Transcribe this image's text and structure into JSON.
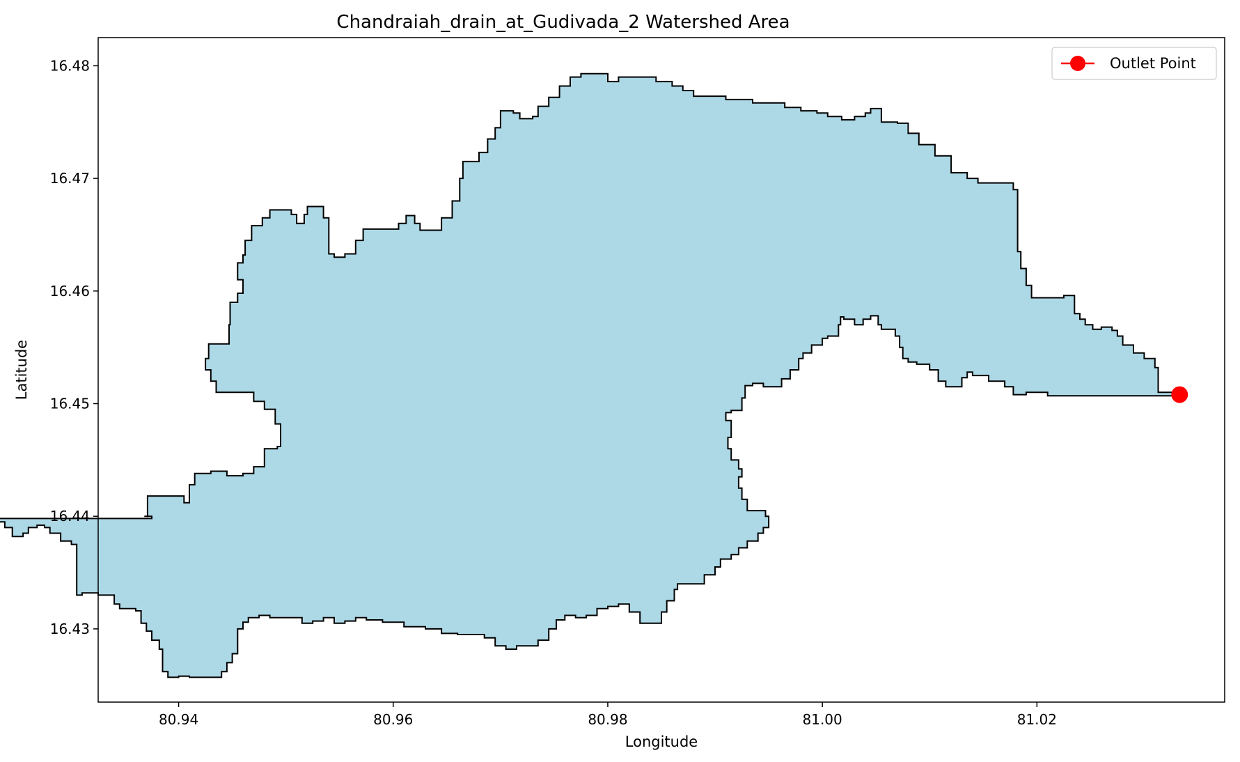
{
  "chart_data": {
    "type": "map",
    "title": "Chandraiah_drain_at_Gudivada_2 Watershed Area",
    "xlabel": "Longitude",
    "ylabel": "Latitude",
    "xlim": [
      80.9325,
      81.0375
    ],
    "ylim": [
      16.4235,
      16.4825
    ],
    "xticks": [
      80.94,
      80.96,
      80.98,
      81.0,
      81.02
    ],
    "xtick_labels": [
      "80.94",
      "80.96",
      "80.98",
      "81.00",
      "81.02"
    ],
    "yticks": [
      16.43,
      16.44,
      16.45,
      16.46,
      16.47,
      16.48
    ],
    "ytick_labels": [
      "16.43",
      "16.44",
      "16.45",
      "16.46",
      "16.47",
      "16.48"
    ],
    "grid": false,
    "watershed": {
      "fill_color": "#add8e6",
      "edge_color": "#000000",
      "boundary": [
        [
          80.9368,
          16.44
        ],
        [
          80.9371,
          16.4408
        ],
        [
          80.9371,
          16.4418
        ],
        [
          80.94,
          16.4418
        ],
        [
          80.9405,
          16.4412
        ],
        [
          80.941,
          16.4418
        ],
        [
          80.941,
          16.4428
        ],
        [
          80.9415,
          16.4438
        ],
        [
          80.943,
          16.444
        ],
        [
          80.9445,
          16.4436
        ],
        [
          80.946,
          16.4438
        ],
        [
          80.947,
          16.4444
        ],
        [
          80.948,
          16.4445
        ],
        [
          80.948,
          16.446
        ],
        [
          80.9492,
          16.4462
        ],
        [
          80.9495,
          16.447
        ],
        [
          80.9495,
          16.4482
        ],
        [
          80.949,
          16.4495
        ],
        [
          80.948,
          16.4502
        ],
        [
          80.947,
          16.451
        ],
        [
          80.944,
          16.451
        ],
        [
          80.9435,
          16.452
        ],
        [
          80.943,
          16.453
        ],
        [
          80.9425,
          16.454
        ],
        [
          80.9428,
          16.4553
        ],
        [
          80.9445,
          16.4553
        ],
        [
          80.9447,
          16.457
        ],
        [
          80.9448,
          16.459
        ],
        [
          80.9455,
          16.4598
        ],
        [
          80.946,
          16.461
        ],
        [
          80.9455,
          16.4625
        ],
        [
          80.946,
          16.4632
        ],
        [
          80.9462,
          16.4645
        ],
        [
          80.9468,
          16.4658
        ],
        [
          80.9478,
          16.4665
        ],
        [
          80.9485,
          16.4672
        ],
        [
          80.9495,
          16.4672
        ],
        [
          80.9505,
          16.4668
        ],
        [
          80.951,
          16.466
        ],
        [
          80.9517,
          16.4668
        ],
        [
          80.952,
          16.4675
        ],
        [
          80.9532,
          16.4675
        ],
        [
          80.9535,
          16.4665
        ],
        [
          80.954,
          16.4655
        ],
        [
          80.954,
          16.4633
        ],
        [
          80.9545,
          16.463
        ],
        [
          80.9555,
          16.4633
        ],
        [
          80.9565,
          16.4645
        ],
        [
          80.9572,
          16.4655
        ],
        [
          80.9595,
          16.4655
        ],
        [
          80.9605,
          16.466
        ],
        [
          80.9612,
          16.4667
        ],
        [
          80.962,
          16.466
        ],
        [
          80.9625,
          16.4654
        ],
        [
          80.9635,
          16.4654
        ],
        [
          80.9645,
          16.4665
        ],
        [
          80.9655,
          16.468
        ],
        [
          80.9662,
          16.47
        ],
        [
          80.9665,
          16.4715
        ],
        [
          80.968,
          16.4723
        ],
        [
          80.9688,
          16.4735
        ],
        [
          80.9695,
          16.4745
        ],
        [
          80.97,
          16.476
        ],
        [
          80.9712,
          16.4758
        ],
        [
          80.9718,
          16.4753
        ],
        [
          80.973,
          16.4755
        ],
        [
          80.9735,
          16.4764
        ],
        [
          80.9745,
          16.4772
        ],
        [
          80.9755,
          16.4782
        ],
        [
          80.9765,
          16.479
        ],
        [
          80.9775,
          16.4793
        ],
        [
          80.979,
          16.4793
        ],
        [
          80.98,
          16.4786
        ],
        [
          80.981,
          16.479
        ],
        [
          80.983,
          16.479
        ],
        [
          80.9845,
          16.4786
        ],
        [
          80.986,
          16.4782
        ],
        [
          80.987,
          16.4778
        ],
        [
          80.988,
          16.4773
        ],
        [
          80.9895,
          16.4773
        ],
        [
          80.991,
          16.477
        ],
        [
          80.9925,
          16.477
        ],
        [
          80.9935,
          16.4767
        ],
        [
          80.995,
          16.4767
        ],
        [
          80.9965,
          16.4763
        ],
        [
          80.998,
          16.476
        ],
        [
          80.9995,
          16.4758
        ],
        [
          81.0005,
          16.4755
        ],
        [
          81.0018,
          16.4752
        ],
        [
          81.003,
          16.4755
        ],
        [
          81.004,
          16.4758
        ],
        [
          81.0045,
          16.4762
        ],
        [
          81.0055,
          16.475
        ],
        [
          81.007,
          16.4749
        ],
        [
          81.008,
          16.474
        ],
        [
          81.009,
          16.473
        ],
        [
          81.0105,
          16.472
        ],
        [
          81.012,
          16.4705
        ],
        [
          81.0135,
          16.47
        ],
        [
          81.0145,
          16.4696
        ],
        [
          81.017,
          16.4696
        ],
        [
          81.0178,
          16.469
        ],
        [
          81.0182,
          16.468
        ],
        [
          81.0182,
          16.466
        ],
        [
          81.0182,
          16.4635
        ],
        [
          81.0185,
          16.462
        ],
        [
          81.019,
          16.4605
        ],
        [
          81.0195,
          16.4594
        ],
        [
          81.0215,
          16.4594
        ],
        [
          81.0225,
          16.4596
        ],
        [
          81.0235,
          16.4596
        ],
        [
          81.0235,
          16.458
        ],
        [
          81.024,
          16.4575
        ],
        [
          81.0245,
          16.457
        ],
        [
          81.0252,
          16.4566
        ],
        [
          81.026,
          16.4568
        ],
        [
          81.027,
          16.4565
        ],
        [
          81.0275,
          16.456
        ],
        [
          81.028,
          16.4552
        ],
        [
          81.029,
          16.4545
        ],
        [
          81.03,
          16.454
        ],
        [
          81.031,
          16.4532
        ],
        [
          81.0313,
          16.452
        ],
        [
          81.0313,
          16.451
        ],
        [
          81.0337,
          16.4509
        ],
        [
          81.0337,
          16.4507
        ],
        [
          81.027,
          16.4507
        ],
        [
          81.024,
          16.4507
        ],
        [
          81.0225,
          16.4507
        ],
        [
          81.021,
          16.451
        ],
        [
          81.02,
          16.451
        ],
        [
          81.019,
          16.4508
        ],
        [
          81.0178,
          16.4515
        ],
        [
          81.017,
          16.452
        ],
        [
          81.0155,
          16.4525
        ],
        [
          81.014,
          16.4528
        ],
        [
          81.0135,
          16.4523
        ],
        [
          81.013,
          16.4515
        ],
        [
          81.012,
          16.4515
        ],
        [
          81.0115,
          16.452
        ],
        [
          81.0108,
          16.453
        ],
        [
          81.01,
          16.4535
        ],
        [
          81.0088,
          16.4537
        ],
        [
          81.008,
          16.454
        ],
        [
          81.0075,
          16.455
        ],
        [
          81.0072,
          16.456
        ],
        [
          81.0068,
          16.4566
        ],
        [
          81.006,
          16.4566
        ],
        [
          81.0055,
          16.457
        ],
        [
          81.0052,
          16.4578
        ],
        [
          81.0045,
          16.4575
        ],
        [
          81.0038,
          16.457
        ],
        [
          81.003,
          16.4575
        ],
        [
          81.002,
          16.4577
        ],
        [
          81.0017,
          16.457
        ],
        [
          81.0015,
          16.456
        ],
        [
          81.0005,
          16.4558
        ],
        [
          81.0,
          16.4552
        ],
        [
          80.999,
          16.4545
        ],
        [
          80.9982,
          16.454
        ],
        [
          80.9978,
          16.453
        ],
        [
          80.997,
          16.4522
        ],
        [
          80.9962,
          16.4515
        ],
        [
          80.9955,
          16.4515
        ],
        [
          80.9945,
          16.4518
        ],
        [
          80.9935,
          16.4516
        ],
        [
          80.9928,
          16.4505
        ],
        [
          80.9925,
          16.4494
        ],
        [
          80.9915,
          16.4492
        ],
        [
          80.991,
          16.4485
        ],
        [
          80.9915,
          16.447
        ],
        [
          80.9912,
          16.446
        ],
        [
          80.9915,
          16.445
        ],
        [
          80.9922,
          16.4442
        ],
        [
          80.9925,
          16.4435
        ],
        [
          80.9922,
          16.4425
        ],
        [
          80.9925,
          16.4415
        ],
        [
          80.993,
          16.4405
        ],
        [
          80.9942,
          16.4405
        ],
        [
          80.9947,
          16.44
        ],
        [
          80.995,
          16.439
        ],
        [
          80.9945,
          16.4385
        ],
        [
          80.994,
          16.4378
        ],
        [
          80.993,
          16.4372
        ],
        [
          80.9922,
          16.4366
        ],
        [
          80.9915,
          16.4362
        ],
        [
          80.9905,
          16.4355
        ],
        [
          80.99,
          16.4348
        ],
        [
          80.989,
          16.434
        ],
        [
          80.9875,
          16.434
        ],
        [
          80.9865,
          16.4335
        ],
        [
          80.9862,
          16.4325
        ],
        [
          80.9855,
          16.4315
        ],
        [
          80.985,
          16.4305
        ],
        [
          80.984,
          16.4305
        ],
        [
          80.983,
          16.4315
        ],
        [
          80.982,
          16.4322
        ],
        [
          80.981,
          16.432
        ],
        [
          80.98,
          16.4318
        ],
        [
          80.979,
          16.4312
        ],
        [
          80.978,
          16.431
        ],
        [
          80.977,
          16.4312
        ],
        [
          80.976,
          16.4308
        ],
        [
          80.9752,
          16.43
        ],
        [
          80.9745,
          16.429
        ],
        [
          80.9735,
          16.4285
        ],
        [
          80.9725,
          16.4285
        ],
        [
          80.9715,
          16.4282
        ],
        [
          80.9705,
          16.4285
        ],
        [
          80.9695,
          16.4292
        ],
        [
          80.9685,
          16.4295
        ],
        [
          80.9675,
          16.4295
        ],
        [
          80.966,
          16.4296
        ],
        [
          80.9645,
          16.43
        ],
        [
          80.963,
          16.4302
        ],
        [
          80.961,
          16.4306
        ],
        [
          80.959,
          16.4308
        ],
        [
          80.9575,
          16.431
        ],
        [
          80.9565,
          16.4307
        ],
        [
          80.9555,
          16.4305
        ],
        [
          80.9545,
          16.431
        ],
        [
          80.9535,
          16.4307
        ],
        [
          80.9525,
          16.4305
        ],
        [
          80.9515,
          16.431
        ],
        [
          80.9505,
          16.431
        ],
        [
          80.9495,
          16.431
        ],
        [
          80.9485,
          16.4312
        ],
        [
          80.9475,
          16.431
        ],
        [
          80.9465,
          16.4306
        ],
        [
          80.946,
          16.43
        ],
        [
          80.9455,
          16.429
        ],
        [
          80.9455,
          16.4278
        ],
        [
          80.945,
          16.427
        ],
        [
          80.9445,
          16.4262
        ],
        [
          80.944,
          16.4257
        ],
        [
          80.9425,
          16.4257
        ],
        [
          80.941,
          16.4258
        ],
        [
          80.94,
          16.4257
        ],
        [
          80.939,
          16.4262
        ],
        [
          80.9385,
          16.4272
        ],
        [
          80.9385,
          16.4282
        ],
        [
          80.9382,
          16.429
        ],
        [
          80.9375,
          16.4298
        ],
        [
          80.937,
          16.4305
        ],
        [
          80.9365,
          16.4316
        ],
        [
          80.936,
          16.4318
        ],
        [
          80.935,
          16.4318
        ],
        [
          80.9345,
          16.4322
        ],
        [
          80.934,
          16.433
        ],
        [
          80.9325,
          16.4332
        ],
        [
          80.932,
          16.4332
        ],
        [
          80.931,
          16.433
        ],
        [
          80.9305,
          16.433
        ],
        [
          80.9305,
          16.434
        ],
        [
          80.9305,
          16.435
        ],
        [
          80.9305,
          16.4365
        ],
        [
          80.9305,
          16.4375
        ],
        [
          80.93,
          16.4378
        ],
        [
          80.929,
          16.4385
        ],
        [
          80.928,
          16.439
        ],
        [
          80.9275,
          16.4392
        ],
        [
          80.9268,
          16.439
        ],
        [
          80.926,
          16.4385
        ],
        [
          80.9255,
          16.4382
        ],
        [
          80.925,
          16.4382
        ],
        [
          80.9245,
          16.439
        ],
        [
          80.9238,
          16.4395
        ],
        [
          80.9228,
          16.4395
        ],
        [
          80.922,
          16.4395
        ],
        [
          80.9215,
          16.4398
        ],
        [
          80.9375,
          16.44
        ]
      ]
    },
    "outlet_point": {
      "label": "Outlet Point",
      "lon": 81.0333,
      "lat": 16.4508,
      "color": "#ff0000"
    },
    "legend": {
      "placement": "upper-right",
      "entries": [
        "Outlet Point"
      ]
    }
  }
}
